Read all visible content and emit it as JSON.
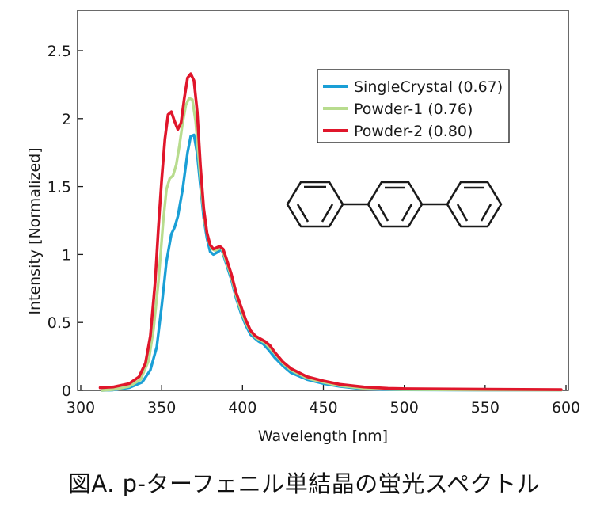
{
  "chart_data": {
    "type": "line",
    "xlabel": "Wavelength [nm]",
    "ylabel": "Intensity [Normalized]",
    "xlim": [
      300,
      600
    ],
    "ylim": [
      0,
      2.5
    ],
    "xticks": [
      "300",
      "350",
      "400",
      "450",
      "500",
      "550",
      "600"
    ],
    "yticks": [
      "0",
      "0.5",
      "1",
      "1.5",
      "2",
      "2.5"
    ],
    "legend_position": "top-right",
    "series": [
      {
        "name": "SingleCrystal (0.67)",
        "color": "#1a9fd6",
        "points": [
          [
            313,
            0
          ],
          [
            320,
            0.003
          ],
          [
            330,
            0.02
          ],
          [
            338,
            0.06
          ],
          [
            343,
            0.15
          ],
          [
            347,
            0.32
          ],
          [
            350,
            0.62
          ],
          [
            353,
            0.95
          ],
          [
            356,
            1.15
          ],
          [
            358,
            1.2
          ],
          [
            360,
            1.28
          ],
          [
            363,
            1.48
          ],
          [
            366,
            1.75
          ],
          [
            368,
            1.87
          ],
          [
            370,
            1.88
          ],
          [
            372,
            1.74
          ],
          [
            374,
            1.5
          ],
          [
            376,
            1.27
          ],
          [
            378,
            1.12
          ],
          [
            380,
            1.02
          ],
          [
            382,
            1.0
          ],
          [
            385,
            1.02
          ],
          [
            387,
            1.04
          ],
          [
            390,
            0.93
          ],
          [
            393,
            0.82
          ],
          [
            396,
            0.68
          ],
          [
            399,
            0.57
          ],
          [
            402,
            0.48
          ],
          [
            405,
            0.41
          ],
          [
            408,
            0.38
          ],
          [
            410,
            0.36
          ],
          [
            413,
            0.34
          ],
          [
            416,
            0.3
          ],
          [
            420,
            0.24
          ],
          [
            425,
            0.18
          ],
          [
            430,
            0.13
          ],
          [
            440,
            0.08
          ],
          [
            450,
            0.05
          ],
          [
            460,
            0.03
          ],
          [
            475,
            0.01
          ],
          [
            490,
            0.005
          ],
          [
            500,
            0.004
          ],
          [
            550,
            0.002
          ],
          [
            597,
            0.002
          ]
        ]
      },
      {
        "name": "Powder-1 (0.76)",
        "color": "#b8dc8e",
        "points": [
          [
            313,
            0
          ],
          [
            320,
            0.005
          ],
          [
            330,
            0.03
          ],
          [
            337,
            0.08
          ],
          [
            342,
            0.22
          ],
          [
            345,
            0.45
          ],
          [
            348,
            0.8
          ],
          [
            351,
            1.25
          ],
          [
            353,
            1.48
          ],
          [
            355,
            1.56
          ],
          [
            357,
            1.58
          ],
          [
            359,
            1.66
          ],
          [
            361,
            1.8
          ],
          [
            363,
            1.97
          ],
          [
            365,
            2.1
          ],
          [
            367,
            2.15
          ],
          [
            369,
            2.14
          ],
          [
            371,
            1.98
          ],
          [
            373,
            1.7
          ],
          [
            375,
            1.42
          ],
          [
            377,
            1.22
          ],
          [
            379,
            1.1
          ],
          [
            381,
            1.04
          ],
          [
            383,
            1.03
          ],
          [
            385,
            1.04
          ],
          [
            387,
            1.05
          ],
          [
            390,
            0.95
          ],
          [
            393,
            0.84
          ],
          [
            396,
            0.7
          ],
          [
            399,
            0.59
          ],
          [
            402,
            0.5
          ],
          [
            405,
            0.43
          ],
          [
            408,
            0.39
          ],
          [
            411,
            0.37
          ],
          [
            414,
            0.35
          ],
          [
            417,
            0.31
          ],
          [
            421,
            0.26
          ],
          [
            425,
            0.2
          ],
          [
            430,
            0.15
          ],
          [
            440,
            0.09
          ],
          [
            450,
            0.06
          ],
          [
            460,
            0.035
          ],
          [
            475,
            0.015
          ],
          [
            490,
            0.008
          ],
          [
            500,
            0.005
          ],
          [
            550,
            0.003
          ],
          [
            597,
            0.002
          ]
        ]
      },
      {
        "name": "Powder-2 (0.80)",
        "color": "#e0162b",
        "points": [
          [
            312,
            0.02
          ],
          [
            320,
            0.025
          ],
          [
            330,
            0.05
          ],
          [
            336,
            0.1
          ],
          [
            340,
            0.2
          ],
          [
            343,
            0.4
          ],
          [
            346,
            0.8
          ],
          [
            348,
            1.2
          ],
          [
            350,
            1.55
          ],
          [
            352,
            1.85
          ],
          [
            354,
            2.03
          ],
          [
            356,
            2.05
          ],
          [
            358,
            1.98
          ],
          [
            360,
            1.92
          ],
          [
            362,
            1.97
          ],
          [
            364,
            2.15
          ],
          [
            366,
            2.3
          ],
          [
            368,
            2.33
          ],
          [
            370,
            2.28
          ],
          [
            372,
            2.05
          ],
          [
            374,
            1.65
          ],
          [
            376,
            1.34
          ],
          [
            378,
            1.16
          ],
          [
            380,
            1.07
          ],
          [
            382,
            1.04
          ],
          [
            384,
            1.05
          ],
          [
            386,
            1.06
          ],
          [
            388,
            1.04
          ],
          [
            390,
            0.97
          ],
          [
            393,
            0.86
          ],
          [
            396,
            0.72
          ],
          [
            399,
            0.62
          ],
          [
            402,
            0.52
          ],
          [
            405,
            0.44
          ],
          [
            408,
            0.4
          ],
          [
            411,
            0.38
          ],
          [
            414,
            0.36
          ],
          [
            417,
            0.33
          ],
          [
            420,
            0.28
          ],
          [
            425,
            0.21
          ],
          [
            430,
            0.16
          ],
          [
            440,
            0.1
          ],
          [
            450,
            0.07
          ],
          [
            460,
            0.045
          ],
          [
            475,
            0.025
          ],
          [
            490,
            0.015
          ],
          [
            500,
            0.012
          ],
          [
            550,
            0.008
          ],
          [
            597,
            0.005
          ]
        ]
      }
    ]
  },
  "caption": "図A. p-ターフェニル単結晶の蛍光スペクトル"
}
